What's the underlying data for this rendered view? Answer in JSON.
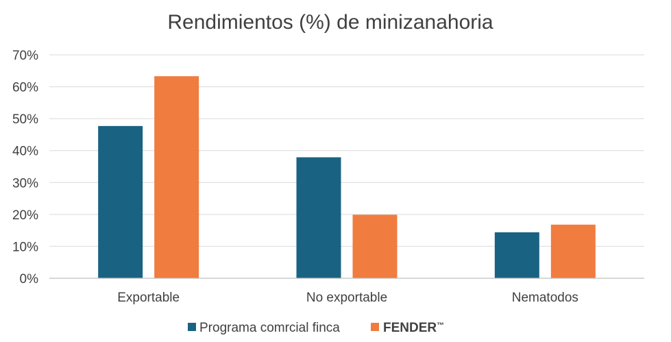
{
  "chart_data": {
    "type": "bar",
    "title": "Rendimientos (%) de minizanahoria",
    "categories": [
      "Exportable",
      "No exportable",
      "Nematodos"
    ],
    "series": [
      {
        "name": "Programa comrcial finca",
        "values": [
          47.7,
          37.9,
          14.4
        ],
        "color": "#1a6282"
      },
      {
        "name": "FENDER",
        "name_suffix": "™",
        "values": [
          63.3,
          19.9,
          16.8
        ],
        "color": "#f07c3f"
      }
    ],
    "ylim": [
      0,
      70
    ],
    "yticks": [
      0,
      10,
      20,
      30,
      40,
      50,
      60,
      70
    ],
    "ytick_labels": [
      "0%",
      "10%",
      "20%",
      "30%",
      "40%",
      "50%",
      "60%",
      "70%"
    ],
    "xlabel": "",
    "ylabel": "",
    "grid": true,
    "legend_position": "bottom"
  }
}
